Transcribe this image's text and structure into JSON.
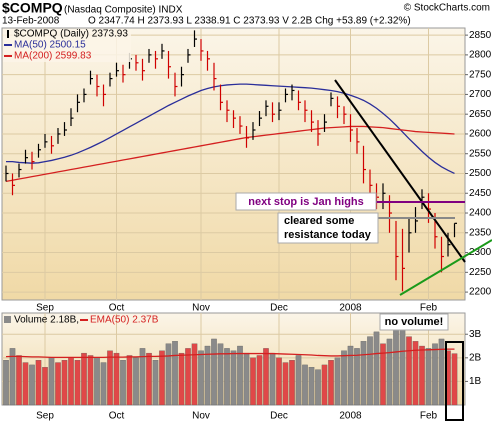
{
  "header": {
    "symbol": "$COMPQ",
    "name": "(Nasdaq Composite) INDX",
    "source": "© StockCharts.com",
    "date": "13-Feb-2008",
    "quote": "O 2347.74 H 2373.93 L 2338.91 C 2373.93 V 2.2B Chg +53.89 (+2.32%)"
  },
  "chart_data": [
    {
      "type": "ohlc",
      "categories": [
        null,
        null,
        null,
        null,
        null,
        null,
        "Sep",
        null,
        null,
        null,
        null,
        null,
        null,
        null,
        null,
        null,
        null,
        "Oct",
        null,
        null,
        null,
        null,
        null,
        null,
        null,
        null,
        null,
        null,
        null,
        null,
        "Nov",
        null,
        null,
        null,
        null,
        null,
        null,
        null,
        null,
        null,
        null,
        null,
        "Dec",
        null,
        null,
        null,
        null,
        null,
        null,
        null,
        null,
        null,
        null,
        "2008",
        null,
        null,
        null,
        null,
        null,
        null,
        null,
        null,
        null,
        null,
        null,
        "Feb",
        null,
        null,
        null,
        null
      ],
      "ylim": [
        2180,
        2868
      ],
      "yticks": [
        2200,
        2250,
        2300,
        2350,
        2400,
        2450,
        2500,
        2550,
        2600,
        2650,
        2700,
        2750,
        2800,
        2850
      ],
      "grid": true,
      "series": [
        {
          "name": "$COMPQ (Daily) 2373.93",
          "color": "#000000",
          "down_color": "#d00000",
          "high": [
            2520,
            2500,
            2525,
            2560,
            2555,
            2575,
            2600,
            2595,
            2615,
            2630,
            2665,
            2700,
            2715,
            2760,
            2750,
            2725,
            2755,
            2780,
            2775,
            2805,
            2800,
            2790,
            2815,
            2810,
            2828,
            2810,
            2755,
            2770,
            2815,
            2862,
            2840,
            2810,
            2780,
            2725,
            2685,
            2660,
            2645,
            2620,
            2630,
            2658,
            2685,
            2680,
            2680,
            2715,
            2725,
            2710,
            2685,
            2660,
            2635,
            2650,
            2705,
            2695,
            2670,
            2650,
            2615,
            2570,
            2510,
            2475,
            2475,
            2445,
            2380,
            2360,
            2390,
            2415,
            2460,
            2450,
            2400,
            2340,
            2350,
            2373.93
          ],
          "low": [
            2480,
            2445,
            2490,
            2525,
            2510,
            2540,
            2565,
            2550,
            2575,
            2595,
            2620,
            2655,
            2680,
            2725,
            2695,
            2670,
            2720,
            2745,
            2730,
            2765,
            2760,
            2735,
            2780,
            2765,
            2790,
            2740,
            2695,
            2720,
            2780,
            2820,
            2785,
            2760,
            2710,
            2660,
            2630,
            2615,
            2600,
            2565,
            2585,
            2620,
            2645,
            2630,
            2635,
            2680,
            2685,
            2660,
            2630,
            2605,
            2570,
            2605,
            2670,
            2640,
            2625,
            2580,
            2550,
            2475,
            2430,
            2410,
            2410,
            2350,
            2230,
            2202,
            2300,
            2350,
            2410,
            2375,
            2310,
            2250,
            2290,
            2338.91
          ],
          "close": [
            2500,
            2470,
            2510,
            2540,
            2530,
            2560,
            2580,
            2570,
            2600,
            2610,
            2640,
            2680,
            2700,
            2740,
            2720,
            2700,
            2740,
            2760,
            2750,
            2790,
            2780,
            2760,
            2800,
            2790,
            2810,
            2770,
            2720,
            2750,
            2800,
            2840,
            2810,
            2790,
            2740,
            2680,
            2660,
            2640,
            2620,
            2590,
            2610,
            2640,
            2670,
            2650,
            2660,
            2700,
            2710,
            2680,
            2660,
            2630,
            2600,
            2630,
            2690,
            2670,
            2650,
            2610,
            2580,
            2510,
            2470,
            2440,
            2450,
            2400,
            2290,
            2260,
            2350,
            2380,
            2440,
            2410,
            2340,
            2290,
            2320,
            2373.93
          ]
        },
        {
          "name": "MA(50) 2500.15",
          "color": "#2a2e9a",
          "values": [
            2530,
            2530,
            2528,
            2527,
            2526,
            2527,
            2530,
            2533,
            2537,
            2541,
            2546,
            2552,
            2559,
            2566,
            2574,
            2582,
            2591,
            2600,
            2609,
            2618,
            2627,
            2636,
            2645,
            2654,
            2663,
            2672,
            2680,
            2688,
            2696,
            2703,
            2710,
            2715,
            2719,
            2722,
            2724,
            2725,
            2726,
            2726,
            2725,
            2724,
            2723,
            2722,
            2721,
            2720,
            2719,
            2718,
            2717,
            2716,
            2714,
            2712,
            2710,
            2707,
            2703,
            2698,
            2692,
            2685,
            2676,
            2665,
            2652,
            2638,
            2622,
            2605,
            2588,
            2572,
            2556,
            2541,
            2528,
            2517,
            2508,
            2500.15
          ]
        },
        {
          "name": "MA(200) 2599.83",
          "color": "#d42020",
          "values": [
            2480,
            2483,
            2486,
            2489,
            2492,
            2495,
            2498,
            2501,
            2504,
            2507,
            2510,
            2513,
            2516,
            2519,
            2522,
            2525,
            2528,
            2531,
            2534,
            2537,
            2540,
            2543,
            2546,
            2549,
            2552,
            2555,
            2558,
            2561,
            2564,
            2567,
            2570,
            2573,
            2576,
            2579,
            2582,
            2585,
            2588,
            2591,
            2593,
            2595,
            2597,
            2599,
            2601,
            2603,
            2605,
            2607,
            2609,
            2611,
            2613,
            2615,
            2616,
            2617,
            2618,
            2619,
            2619,
            2619,
            2618,
            2617,
            2616,
            2614,
            2612,
            2610,
            2608,
            2606,
            2605,
            2604,
            2603,
            2602,
            2601,
            2599.83
          ]
        }
      ],
      "annotations": [
        "next stop is Jan highs",
        "cleared some",
        "resistance today"
      ]
    },
    {
      "type": "bar",
      "categories": [
        null,
        null,
        null,
        null,
        null,
        null,
        "Sep",
        null,
        null,
        null,
        null,
        null,
        null,
        null,
        null,
        null,
        null,
        "Oct",
        null,
        null,
        null,
        null,
        null,
        null,
        null,
        null,
        null,
        null,
        null,
        null,
        "Nov",
        null,
        null,
        null,
        null,
        null,
        null,
        null,
        null,
        null,
        null,
        null,
        "Dec",
        null,
        null,
        null,
        null,
        null,
        null,
        null,
        null,
        null,
        null,
        "2008",
        null,
        null,
        null,
        null,
        null,
        null,
        null,
        null,
        null,
        null,
        null,
        "Feb",
        null,
        null,
        null,
        null
      ],
      "ylim": [
        0,
        3.9
      ],
      "yticks": [
        {
          "value": 1,
          "label": "1B"
        },
        {
          "value": 2,
          "label": "2B"
        },
        {
          "value": 3,
          "label": "3B"
        }
      ],
      "grid": true,
      "series": [
        {
          "name": "Volume 2.18B,",
          "color": "#8a8a8a",
          "up_color": "#e04848",
          "values": [
            1.9,
            2.4,
            2.1,
            1.8,
            1.7,
            1.9,
            1.6,
            2.0,
            1.8,
            1.9,
            2.0,
            1.9,
            2.2,
            2.1,
            2.0,
            1.8,
            2.3,
            2.2,
            1.9,
            2.1,
            2.0,
            2.4,
            2.2,
            1.9,
            2.3,
            2.6,
            2.7,
            2.2,
            2.4,
            2.6,
            2.3,
            2.5,
            2.8,
            2.6,
            2.4,
            2.3,
            2.5,
            2.2,
            2.0,
            2.1,
            2.4,
            2.2,
            2.0,
            1.8,
            1.9,
            2.1,
            1.7,
            1.6,
            1.5,
            1.7,
            1.9,
            2.0,
            2.3,
            2.5,
            2.4,
            2.7,
            2.9,
            3.1,
            2.6,
            2.8,
            3.3,
            3.2,
            2.9,
            2.7,
            2.5,
            2.4,
            2.6,
            2.8,
            2.3,
            2.18
          ]
        },
        {
          "name": "EMA(50) 2.37B",
          "type": "line",
          "color": "#d42020",
          "values": [
            2.05,
            2.06,
            2.06,
            2.05,
            2.04,
            2.04,
            2.03,
            2.02,
            2.02,
            2.02,
            2.02,
            2.02,
            2.02,
            2.02,
            2.02,
            2.02,
            2.03,
            2.03,
            2.03,
            2.04,
            2.04,
            2.05,
            2.06,
            2.06,
            2.07,
            2.08,
            2.1,
            2.11,
            2.12,
            2.13,
            2.14,
            2.15,
            2.16,
            2.17,
            2.17,
            2.18,
            2.18,
            2.18,
            2.18,
            2.18,
            2.18,
            2.18,
            2.17,
            2.16,
            2.15,
            2.14,
            2.13,
            2.12,
            2.1,
            2.09,
            2.08,
            2.08,
            2.09,
            2.1,
            2.11,
            2.13,
            2.15,
            2.18,
            2.2,
            2.22,
            2.25,
            2.28,
            2.3,
            2.32,
            2.33,
            2.34,
            2.35,
            2.36,
            2.37,
            2.37
          ]
        }
      ],
      "annotations": [
        "no volume!"
      ]
    }
  ]
}
